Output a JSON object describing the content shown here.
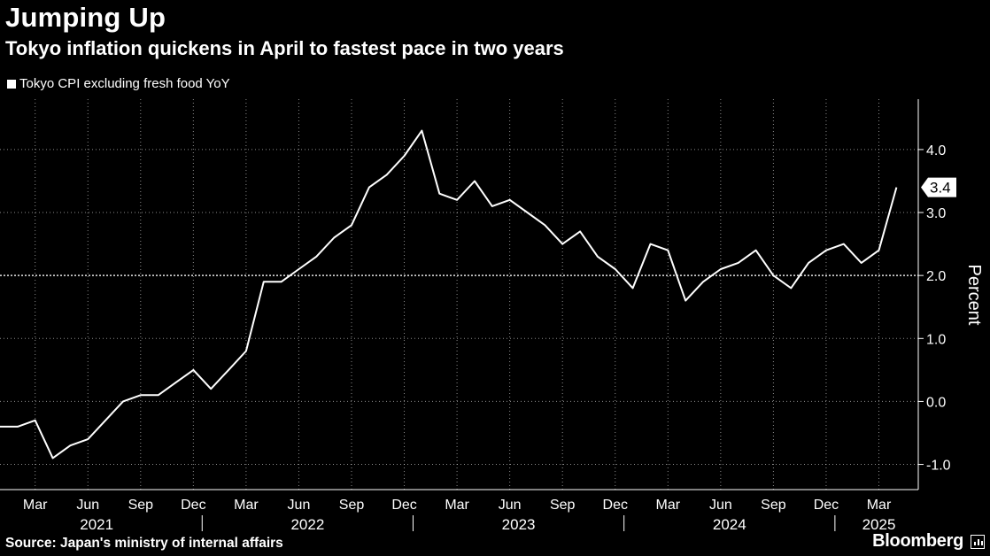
{
  "title": "Jumping Up",
  "subtitle": "Tokyo inflation quickens in April to fastest pace in two years",
  "legend_label": "Tokyo CPI excluding fresh food YoY",
  "ylabel": "Percent",
  "last_value_label": "3.4",
  "source": "Source: Japan's ministry of internal affairs",
  "brand": "Bloomberg",
  "colors": {
    "background": "#000000",
    "line": "#ffffff",
    "grid": "#ffffff"
  },
  "chart_data": {
    "type": "line",
    "xlabel": "",
    "ylabel": "Percent",
    "ylim": [
      -1.4,
      4.8
    ],
    "yticks": [
      -1.0,
      0.0,
      1.0,
      2.0,
      3.0,
      4.0
    ],
    "ytick_labels": [
      "-1.0",
      "0.0",
      "1.0",
      "2.0",
      "3.0",
      "4.0"
    ],
    "reference_line": 2.0,
    "grid": true,
    "legend_position": "top-left",
    "month_ticks": [
      "Mar",
      "Jun",
      "Sep",
      "Dec",
      "Mar",
      "Jun",
      "Sep",
      "Dec",
      "Mar",
      "Jun",
      "Sep",
      "Dec",
      "Mar",
      "Jun",
      "Sep",
      "Dec",
      "Mar"
    ],
    "year_labels": [
      "2021",
      "2022",
      "2023",
      "2024",
      "2025"
    ],
    "x": [
      "2021-01",
      "2021-02",
      "2021-03",
      "2021-04",
      "2021-05",
      "2021-06",
      "2021-07",
      "2021-08",
      "2021-09",
      "2021-10",
      "2021-11",
      "2021-12",
      "2022-01",
      "2022-02",
      "2022-03",
      "2022-04",
      "2022-05",
      "2022-06",
      "2022-07",
      "2022-08",
      "2022-09",
      "2022-10",
      "2022-11",
      "2022-12",
      "2023-01",
      "2023-02",
      "2023-03",
      "2023-04",
      "2023-05",
      "2023-06",
      "2023-07",
      "2023-08",
      "2023-09",
      "2023-10",
      "2023-11",
      "2023-12",
      "2024-01",
      "2024-02",
      "2024-03",
      "2024-04",
      "2024-05",
      "2024-06",
      "2024-07",
      "2024-08",
      "2024-09",
      "2024-10",
      "2024-11",
      "2024-12",
      "2025-01",
      "2025-02",
      "2025-03",
      "2025-04"
    ],
    "series": [
      {
        "name": "Tokyo CPI excluding fresh food YoY",
        "values": [
          -0.4,
          -0.4,
          -0.3,
          -0.9,
          -0.7,
          -0.6,
          -0.3,
          0.0,
          0.1,
          0.1,
          0.3,
          0.5,
          0.2,
          0.5,
          0.8,
          1.9,
          1.9,
          2.1,
          2.3,
          2.6,
          2.8,
          3.4,
          3.6,
          3.9,
          4.3,
          3.3,
          3.2,
          3.5,
          3.1,
          3.2,
          3.0,
          2.8,
          2.5,
          2.7,
          2.3,
          2.1,
          1.8,
          2.5,
          2.4,
          1.6,
          1.9,
          2.1,
          2.2,
          2.4,
          2.0,
          1.8,
          2.2,
          2.4,
          2.5,
          2.2,
          2.4,
          3.4
        ]
      }
    ]
  }
}
